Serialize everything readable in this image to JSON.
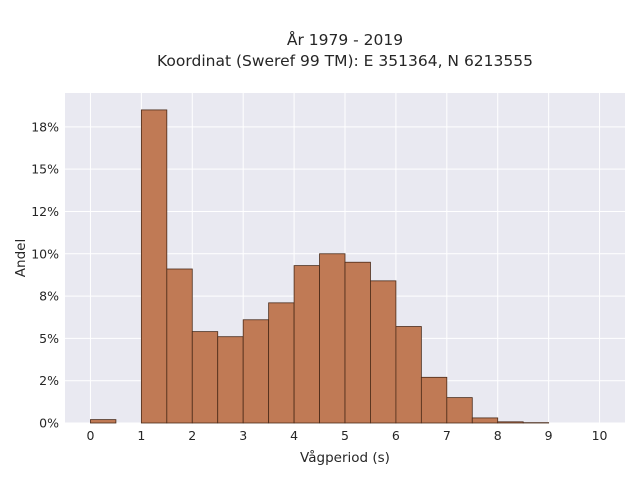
{
  "chart_data": {
    "type": "bar",
    "title_lines": [
      "År 1979 - 2019",
      "Koordinat (Sweref 99 TM): E 351364, N 6213555"
    ],
    "xlabel": "Vågperiod (s)",
    "ylabel": "Andel",
    "xlim": [
      -0.5,
      10.5
    ],
    "ylim": [
      0,
      0.195
    ],
    "x_ticks": [
      0,
      1,
      2,
      3,
      4,
      5,
      6,
      7,
      8,
      9,
      10
    ],
    "y_ticks": [
      0,
      0.025,
      0.05,
      0.075,
      0.1,
      0.125,
      0.15,
      0.175
    ],
    "y_tick_labels": [
      "0%",
      "2%",
      "5%",
      "8%",
      "10%",
      "12%",
      "15%",
      "18%"
    ],
    "bin_width": 0.5,
    "bins": [
      {
        "x0": 0.0,
        "value": 0.002
      },
      {
        "x0": 1.0,
        "value": 0.185
      },
      {
        "x0": 1.5,
        "value": 0.091
      },
      {
        "x0": 2.0,
        "value": 0.054
      },
      {
        "x0": 2.5,
        "value": 0.051
      },
      {
        "x0": 3.0,
        "value": 0.061
      },
      {
        "x0": 3.5,
        "value": 0.071
      },
      {
        "x0": 4.0,
        "value": 0.093
      },
      {
        "x0": 4.5,
        "value": 0.1
      },
      {
        "x0": 5.0,
        "value": 0.095
      },
      {
        "x0": 5.5,
        "value": 0.084
      },
      {
        "x0": 6.0,
        "value": 0.057
      },
      {
        "x0": 6.5,
        "value": 0.027
      },
      {
        "x0": 7.0,
        "value": 0.015
      },
      {
        "x0": 7.5,
        "value": 0.003
      },
      {
        "x0": 8.0,
        "value": 0.0007
      },
      {
        "x0": 8.5,
        "value": 0.0002
      }
    ],
    "grid": true,
    "colors": {
      "bar": "#c07a55",
      "bar_edge": "#4a2a18",
      "plot_bg": "#e9e9f1",
      "grid": "#ffffff"
    }
  }
}
